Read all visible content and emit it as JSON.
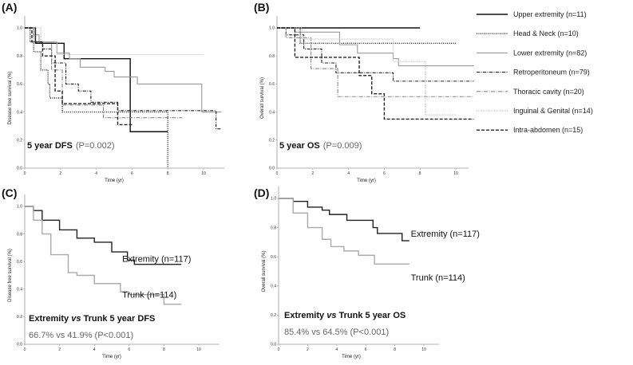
{
  "legend": [
    {
      "name": "Upper extremity (n=11)",
      "color": "#111111",
      "dash": "",
      "width": 1.4
    },
    {
      "name": "Head & Neck (n=10)",
      "color": "#222222",
      "dash": "1,1.5",
      "width": 1.4
    },
    {
      "name": "Lower extremity (n=82)",
      "color": "#999999",
      "dash": "",
      "width": 1.1
    },
    {
      "name": "Retroperitoneum (n=79)",
      "color": "#222222",
      "dash": "4,1.5,1,1.5",
      "width": 1.1
    },
    {
      "name": "Thoracic cavity (n=20)",
      "color": "#888888",
      "dash": "5,1.5,1,1.5",
      "width": 1.1
    },
    {
      "name": "Inguinal & Genital (n=14)",
      "color": "#bbbbbb",
      "dash": "1,1",
      "width": 1.1
    },
    {
      "name": "Intra-abdomen (n=15)",
      "color": "#222222",
      "dash": "4,2",
      "width": 1.4
    }
  ],
  "chart_data": [
    {
      "panel": "(A)",
      "type": "line",
      "step": true,
      "ylabel": "Disease free survival (%)",
      "xlabel": "Time (yr)",
      "xlim": [
        0,
        11
      ],
      "ylim": [
        0,
        1
      ],
      "xticks": [
        "0",
        "2",
        "4",
        "6",
        "8",
        "10"
      ],
      "yticks": [
        "0.0",
        "0.2",
        "0.4",
        "0.6",
        "0.8",
        "1.0"
      ],
      "annotation": {
        "bold": "5 year DFS",
        "normal": "(P=0.002)"
      },
      "series": [
        {
          "name": "Upper extremity (n=11)",
          "points": [
            [
              0,
              1
            ],
            [
              0.6,
              0.89
            ],
            [
              2.2,
              0.78
            ],
            [
              5.9,
              0.26
            ],
            [
              8,
              0.26
            ]
          ]
        },
        {
          "name": "Head & Neck (n=10)",
          "points": [
            [
              0,
              1
            ],
            [
              0.3,
              0.9
            ],
            [
              0.5,
              0.83
            ],
            [
              0.9,
              0.7
            ],
            [
              1.3,
              0.6
            ],
            [
              1.4,
              0.5
            ],
            [
              2.1,
              0.4
            ],
            [
              8,
              0.4
            ],
            [
              8,
              0
            ]
          ]
        },
        {
          "name": "Lower extremity (n=82)",
          "points": [
            [
              0,
              1
            ],
            [
              0.5,
              0.95
            ],
            [
              0.8,
              0.9
            ],
            [
              1.8,
              0.82
            ],
            [
              2.5,
              0.78
            ],
            [
              3.1,
              0.72
            ],
            [
              4.5,
              0.69
            ],
            [
              5,
              0.65
            ],
            [
              6.3,
              0.6
            ],
            [
              9.9,
              0.4
            ],
            [
              11,
              0.4
            ]
          ]
        },
        {
          "name": "Retroperitoneum (n=79)",
          "points": [
            [
              0,
              1
            ],
            [
              0.6,
              0.9
            ],
            [
              1,
              0.85
            ],
            [
              1.5,
              0.75
            ],
            [
              2.3,
              0.6
            ],
            [
              3,
              0.55
            ],
            [
              3.7,
              0.47
            ],
            [
              5.2,
              0.41
            ],
            [
              10.7,
              0.38
            ],
            [
              10.7,
              0.28
            ],
            [
              11,
              0.28
            ]
          ]
        },
        {
          "name": "Thoracic cavity (n=20)",
          "points": [
            [
              0,
              1
            ],
            [
              0.5,
              0.9
            ],
            [
              1.5,
              0.7
            ],
            [
              2.1,
              0.45
            ],
            [
              4.4,
              0.36
            ],
            [
              8.8,
              0.36
            ]
          ]
        },
        {
          "name": "Inguinal & Genital (n=14)",
          "points": [
            [
              0,
              1
            ],
            [
              0.9,
              0.9
            ],
            [
              1.8,
              0.81
            ],
            [
              10,
              0.81
            ]
          ]
        },
        {
          "name": "Intra-abdomen (n=15)",
          "points": [
            [
              0,
              1
            ],
            [
              0.4,
              0.9
            ],
            [
              1,
              0.8
            ],
            [
              1.7,
              0.55
            ],
            [
              2.1,
              0.46
            ],
            [
              5.2,
              0.31
            ],
            [
              6,
              0.31
            ]
          ]
        }
      ]
    },
    {
      "panel": "(B)",
      "type": "line",
      "step": true,
      "ylabel": "Overall survival (%)",
      "xlabel": "Time (yr)",
      "xlim": [
        0,
        11
      ],
      "ylim": [
        0,
        1
      ],
      "xticks": [
        "0",
        "2",
        "4",
        "6",
        "8",
        "10"
      ],
      "yticks": [
        "0.0",
        "0.2",
        "0.4",
        "0.6",
        "0.8",
        "1.0"
      ],
      "annotation": {
        "bold": "5 year OS",
        "normal": "(P=0.009)"
      },
      "series": [
        {
          "name": "Upper extremity (n=11)",
          "points": [
            [
              0,
              1
            ],
            [
              8,
              1
            ]
          ]
        },
        {
          "name": "Head & Neck (n=10)",
          "points": [
            [
              0,
              1
            ],
            [
              1.3,
              0.89
            ],
            [
              10,
              0.89
            ]
          ]
        },
        {
          "name": "Lower extremity (n=82)",
          "points": [
            [
              0,
              1
            ],
            [
              1,
              0.97
            ],
            [
              3.5,
              0.88
            ],
            [
              4.5,
              0.82
            ],
            [
              6.5,
              0.78
            ],
            [
              6.8,
              0.73
            ],
            [
              11,
              0.73
            ]
          ]
        },
        {
          "name": "Retroperitoneum (n=79)",
          "points": [
            [
              0,
              1
            ],
            [
              0.5,
              0.95
            ],
            [
              1.5,
              0.85
            ],
            [
              2.5,
              0.75
            ],
            [
              3.3,
              0.68
            ],
            [
              6.5,
              0.62
            ],
            [
              11,
              0.62
            ]
          ]
        },
        {
          "name": "Thoracic cavity (n=20)",
          "points": [
            [
              0,
              1
            ],
            [
              0.5,
              0.93
            ],
            [
              1.9,
              0.71
            ],
            [
              3.4,
              0.51
            ],
            [
              11,
              0.51
            ]
          ]
        },
        {
          "name": "Inguinal & Genital (n=14)",
          "points": [
            [
              0,
              1
            ],
            [
              1.4,
              0.92
            ],
            [
              6.5,
              0.76
            ],
            [
              8.3,
              0.38
            ],
            [
              10,
              0.38
            ]
          ]
        },
        {
          "name": "Intra-abdomen (n=15)",
          "points": [
            [
              0,
              1
            ],
            [
              1,
              0.79
            ],
            [
              4.6,
              0.66
            ],
            [
              5.3,
              0.53
            ],
            [
              6,
              0.35
            ],
            [
              11,
              0.35
            ]
          ]
        }
      ]
    },
    {
      "panel": "(C)",
      "type": "line",
      "step": true,
      "ylabel": "Disease free survival (%)",
      "xlabel": "Time (yr)",
      "xlim": [
        0,
        11
      ],
      "ylim": [
        0,
        1
      ],
      "xticks": [
        "0",
        "2",
        "4",
        "6",
        "8",
        "10"
      ],
      "yticks": [
        "0.0",
        "0.2",
        "0.4",
        "0.6",
        "0.8",
        "1.0"
      ],
      "annotation": {
        "bold_a": "Extremity",
        "italic": "vs",
        "bold_b": "Trunk 5 year DFS",
        "stats": "66.7% vs 41.9%   (P<0.001)"
      },
      "series": [
        {
          "name": "Extremity (n=117)",
          "color": "#222222",
          "points": [
            [
              0,
              1
            ],
            [
              0.5,
              0.97
            ],
            [
              1,
              0.9
            ],
            [
              2,
              0.83
            ],
            [
              3,
              0.77
            ],
            [
              4,
              0.74
            ],
            [
              5,
              0.67
            ],
            [
              5.9,
              0.61
            ],
            [
              6.3,
              0.58
            ],
            [
              9,
              0.58
            ]
          ]
        },
        {
          "name": "Trunk (n=114)",
          "color": "#aaaaaa",
          "points": [
            [
              0,
              1
            ],
            [
              0.5,
              0.9
            ],
            [
              1,
              0.8
            ],
            [
              1.5,
              0.65
            ],
            [
              2.5,
              0.52
            ],
            [
              3,
              0.5
            ],
            [
              4,
              0.44
            ],
            [
              5,
              0.44
            ],
            [
              5.5,
              0.38
            ],
            [
              6,
              0.36
            ],
            [
              8,
              0.29
            ],
            [
              9,
              0.29
            ]
          ]
        }
      ]
    },
    {
      "panel": "(D)",
      "type": "line",
      "step": true,
      "ylabel": "Overall survival (%)",
      "xlabel": "Time (yr)",
      "xlim": [
        0,
        11
      ],
      "ylim": [
        0,
        1
      ],
      "xticks": [
        "0",
        "2",
        "4",
        "6",
        "8",
        "10"
      ],
      "yticks": [
        "0.0",
        "0.2",
        "0.4",
        "0.6",
        "0.8",
        "1.0"
      ],
      "annotation": {
        "bold_a": "Extremity",
        "italic": "vs",
        "bold_b": "Trunk 5 year OS",
        "stats": "85.4% vs 64.5%   (P<0.001)"
      },
      "series": [
        {
          "name": "Extremity (n=117)",
          "color": "#222222",
          "points": [
            [
              0,
              1
            ],
            [
              1,
              0.98
            ],
            [
              2,
              0.94
            ],
            [
              3,
              0.92
            ],
            [
              3.5,
              0.89
            ],
            [
              4.7,
              0.85
            ],
            [
              6.5,
              0.8
            ],
            [
              6.8,
              0.76
            ],
            [
              8.5,
              0.71
            ],
            [
              9,
              0.71
            ]
          ]
        },
        {
          "name": "Trunk (n=114)",
          "color": "#aaaaaa",
          "points": [
            [
              0,
              1
            ],
            [
              1,
              0.9
            ],
            [
              2,
              0.8
            ],
            [
              3,
              0.72
            ],
            [
              3.6,
              0.67
            ],
            [
              4.5,
              0.64
            ],
            [
              5.5,
              0.61
            ],
            [
              6.6,
              0.55
            ],
            [
              9,
              0.55
            ]
          ]
        }
      ]
    }
  ]
}
